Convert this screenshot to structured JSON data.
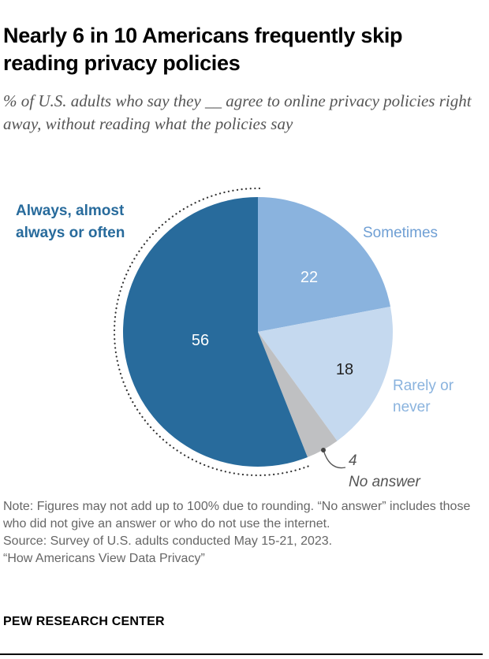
{
  "title": "Nearly 6 in 10 Americans frequently skip reading privacy policies",
  "subtitle": "% of U.S. adults who say they __ agree to online privacy policies right away, without reading what the policies say",
  "chart_data": {
    "type": "pie",
    "slices": [
      {
        "label": "Sometimes",
        "value": 22,
        "color": "#8ab3de"
      },
      {
        "label": "Rarely or never",
        "value": 18,
        "color": "#c5d9ef"
      },
      {
        "label": "No answer",
        "value": 4,
        "color": "#bfc0c2"
      },
      {
        "label": "Always, almost always or often",
        "value": 56,
        "color": "#286b9c"
      }
    ],
    "start": "top, clockwise",
    "highlighted": "Always, almost always or often"
  },
  "labels": {
    "always_line1": "Always, almost",
    "always_line2": "always or often",
    "sometimes": "Sometimes",
    "rarely_line1": "Rarely or",
    "rarely_line2": "never",
    "no_answer_value": "4",
    "no_answer": "No answer",
    "v56": "56",
    "v22": "22",
    "v18": "18"
  },
  "note": "Note: Figures may not add up to 100% due to rounding. “No answer” includes those who did not give an answer or who do not use the internet.",
  "source": "Source: Survey of U.S. adults conducted May 15-21, 2023.",
  "report": "“How Americans View Data Privacy”",
  "brand": "PEW RESEARCH CENTER"
}
